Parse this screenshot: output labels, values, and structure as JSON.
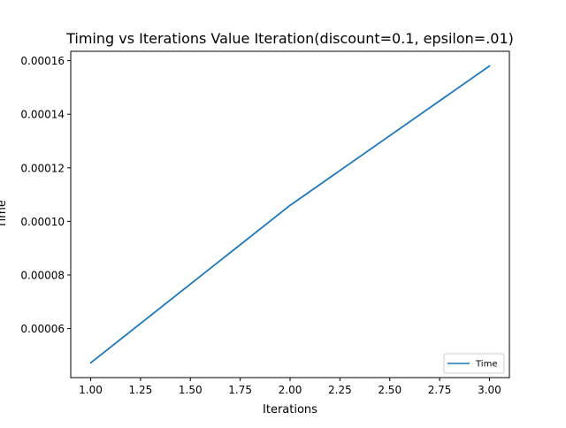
{
  "chart_data": {
    "type": "line",
    "title": "Timing vs Iterations Value Iteration(discount=0.1, epsilon=.01)",
    "xlabel": "Iterations",
    "ylabel": "Time",
    "x": [
      1.0,
      2.0,
      3.0
    ],
    "series": [
      {
        "name": "Time",
        "values": [
          4.72e-05,
          0.000106,
          0.000158
        ],
        "color": "#1f77b4"
      }
    ],
    "xlim": [
      0.9,
      3.1
    ],
    "ylim": [
      4.17e-05,
      0.0001635
    ],
    "x_ticks": [
      1.0,
      1.25,
      1.5,
      1.75,
      2.0,
      2.25,
      2.5,
      2.75,
      3.0
    ],
    "x_tick_labels": [
      "1.00",
      "1.25",
      "1.50",
      "1.75",
      "2.00",
      "2.25",
      "2.50",
      "2.75",
      "3.00"
    ],
    "y_ticks": [
      6e-05,
      8e-05,
      0.0001,
      0.00012,
      0.00014,
      0.00016
    ],
    "y_tick_labels": [
      "0.00006",
      "0.00008",
      "0.00010",
      "0.00012",
      "0.00014",
      "0.00016"
    ],
    "grid": false,
    "legend_position": "lower-right"
  }
}
